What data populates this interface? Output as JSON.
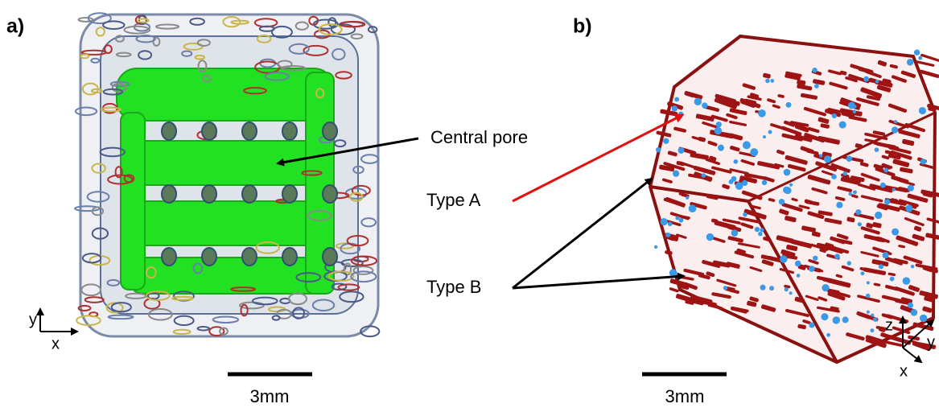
{
  "panels": [
    {
      "label": "a)",
      "annotations": [
        "Central pore"
      ],
      "scale_bar": "3mm",
      "axes": [
        "y",
        "x"
      ]
    },
    {
      "label": "b)",
      "annotations": [
        "Type A",
        "Type B"
      ],
      "scale_bar": "3mm",
      "axes": [
        "z",
        "y",
        "x"
      ]
    }
  ]
}
